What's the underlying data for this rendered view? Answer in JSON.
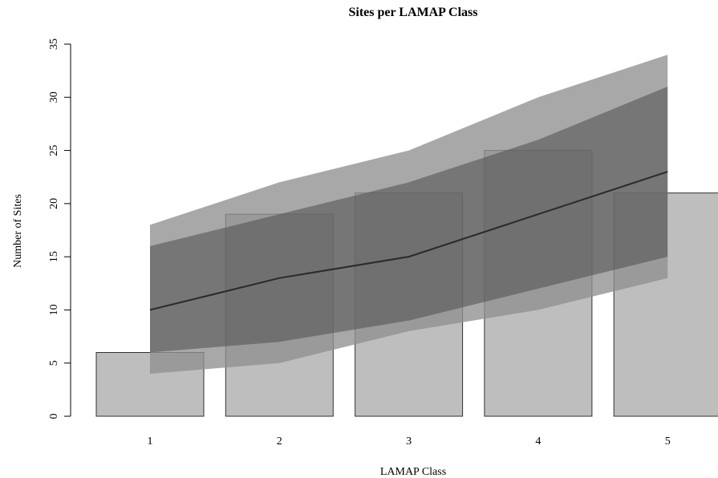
{
  "chart_data": {
    "type": "bar",
    "title": "Sites per LAMAP Class",
    "xlabel": "LAMAP Class",
    "ylabel": "Number of Sites",
    "categories": [
      "1",
      "2",
      "3",
      "4",
      "5"
    ],
    "ylim": [
      0,
      35
    ],
    "yticks": [
      "0",
      "5",
      "10",
      "15",
      "20",
      "25",
      "30",
      "35"
    ],
    "series": [
      {
        "values": [
          6,
          19,
          21,
          25,
          21
        ]
      }
    ],
    "expected_line": [
      10,
      13,
      15,
      19,
      23
    ],
    "inner_band": {
      "lower": [
        6,
        7,
        9,
        12,
        15
      ],
      "upper": [
        16,
        19,
        22,
        26,
        31
      ]
    },
    "outer_band": {
      "lower": [
        4,
        5,
        8,
        10,
        13
      ],
      "upper": [
        18,
        22,
        25,
        30,
        34
      ]
    },
    "grid": false,
    "colors": {
      "bar_fill": "#bebebe",
      "bar_stroke": "#333333",
      "outer_band": "#8f8f8f",
      "inner_band": "#555555",
      "line": "#2a2a2a"
    }
  }
}
